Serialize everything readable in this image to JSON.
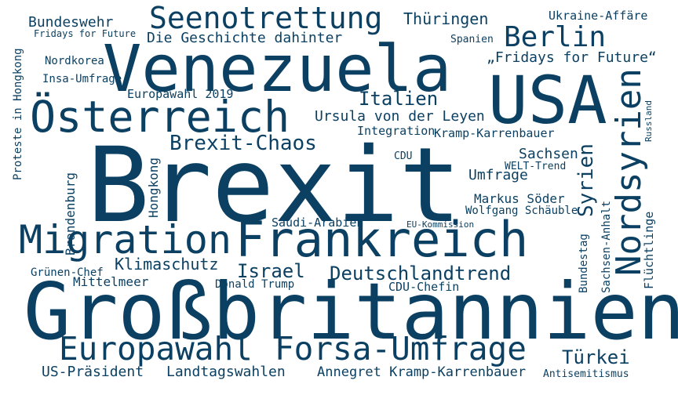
{
  "color": "#0b4062",
  "words": [
    {
      "key": "brexit",
      "text": "Brexit"
    },
    {
      "key": "grossbritannien",
      "text": "Großbritannien"
    },
    {
      "key": "venezuela",
      "text": "Venezuela"
    },
    {
      "key": "usa",
      "text": "USA"
    },
    {
      "key": "frankreich",
      "text": "Frankreich"
    },
    {
      "key": "oesterreich",
      "text": "Österreich"
    },
    {
      "key": "migration",
      "text": "Migration"
    },
    {
      "key": "europawahl",
      "text": "Europawahl"
    },
    {
      "key": "forsa-umfrage",
      "text": "Forsa-Umfrage"
    },
    {
      "key": "nordsyrien",
      "text": "Nordsyrien"
    },
    {
      "key": "seenotrettung",
      "text": "Seenotrettung"
    },
    {
      "key": "berlin",
      "text": "Berlin"
    },
    {
      "key": "brexit-chaos",
      "text": "Brexit-Chaos"
    },
    {
      "key": "syrien",
      "text": "Syrien"
    },
    {
      "key": "deutschlandtrend",
      "text": "Deutschlandtrend"
    },
    {
      "key": "italien",
      "text": "Italien"
    },
    {
      "key": "israel",
      "text": "Israel"
    },
    {
      "key": "tuerkei",
      "text": "Türkei"
    },
    {
      "key": "klimaschutz",
      "text": "Klimaschutz"
    },
    {
      "key": "die-geschichte-dahinter",
      "text": "Die Geschichte dahinter"
    },
    {
      "key": "ursula-von-der-leyen",
      "text": "Ursula von der Leyen"
    },
    {
      "key": "thueringen",
      "text": "Thüringen"
    },
    {
      "key": "bundeswehr",
      "text": "Bundeswehr"
    },
    {
      "key": "landtagswahlen",
      "text": "Landtagswahlen"
    },
    {
      "key": "us-praesident",
      "text": "US-Präsident"
    },
    {
      "key": "annegret-kramp-karrenbauer",
      "text": "Annegret Kramp-Karrenbauer"
    },
    {
      "key": "fridays-for-future-quoted",
      "text": "„Fridays for Future“"
    },
    {
      "key": "sachsen",
      "text": "Sachsen"
    },
    {
      "key": "umfrage",
      "text": "Umfrage"
    },
    {
      "key": "markus-soeder",
      "text": "Markus Söder"
    },
    {
      "key": "kramp-karrenbauer",
      "text": "Kramp-Karrenbauer"
    },
    {
      "key": "hongkong",
      "text": "Hongkong"
    },
    {
      "key": "brandenburg",
      "text": "Brandenburg"
    },
    {
      "key": "ukraine-affaere",
      "text": "Ukraine-Affäre"
    },
    {
      "key": "europawahl-2019",
      "text": "Europawahl 2019"
    },
    {
      "key": "mittelmeer",
      "text": "Mittelmeer"
    },
    {
      "key": "nordkorea",
      "text": "Nordkorea"
    },
    {
      "key": "insa-umfrage",
      "text": "Insa-Umfrage"
    },
    {
      "key": "fridays-for-future",
      "text": "Fridays for Future"
    },
    {
      "key": "proteste-in-hongkong",
      "text": "Proteste in Hongkong"
    },
    {
      "key": "integration",
      "text": "Integration"
    },
    {
      "key": "cdu",
      "text": "CDU"
    },
    {
      "key": "cdu-chefin",
      "text": "CDU-Chefin"
    },
    {
      "key": "gruenen-chef",
      "text": "Grünen-Chef"
    },
    {
      "key": "donald-trump",
      "text": "Donald Trump"
    },
    {
      "key": "saudi-arabien",
      "text": "Saudi-Arabien"
    },
    {
      "key": "eu-kommission",
      "text": "EU-Kommission"
    },
    {
      "key": "welt-trend",
      "text": "WELT-Trend"
    },
    {
      "key": "wolfgang-schaeuble",
      "text": "Wolfgang Schäuble"
    },
    {
      "key": "spanien",
      "text": "Spanien"
    },
    {
      "key": "antisemitismus",
      "text": "Antisemitismus"
    },
    {
      "key": "bundestag",
      "text": "Bundestag"
    },
    {
      "key": "sachsen-anhalt",
      "text": "Sachsen-Anhalt"
    },
    {
      "key": "fluechtlinge",
      "text": "Flüchtlinge"
    },
    {
      "key": "russland",
      "text": "Russland"
    }
  ]
}
